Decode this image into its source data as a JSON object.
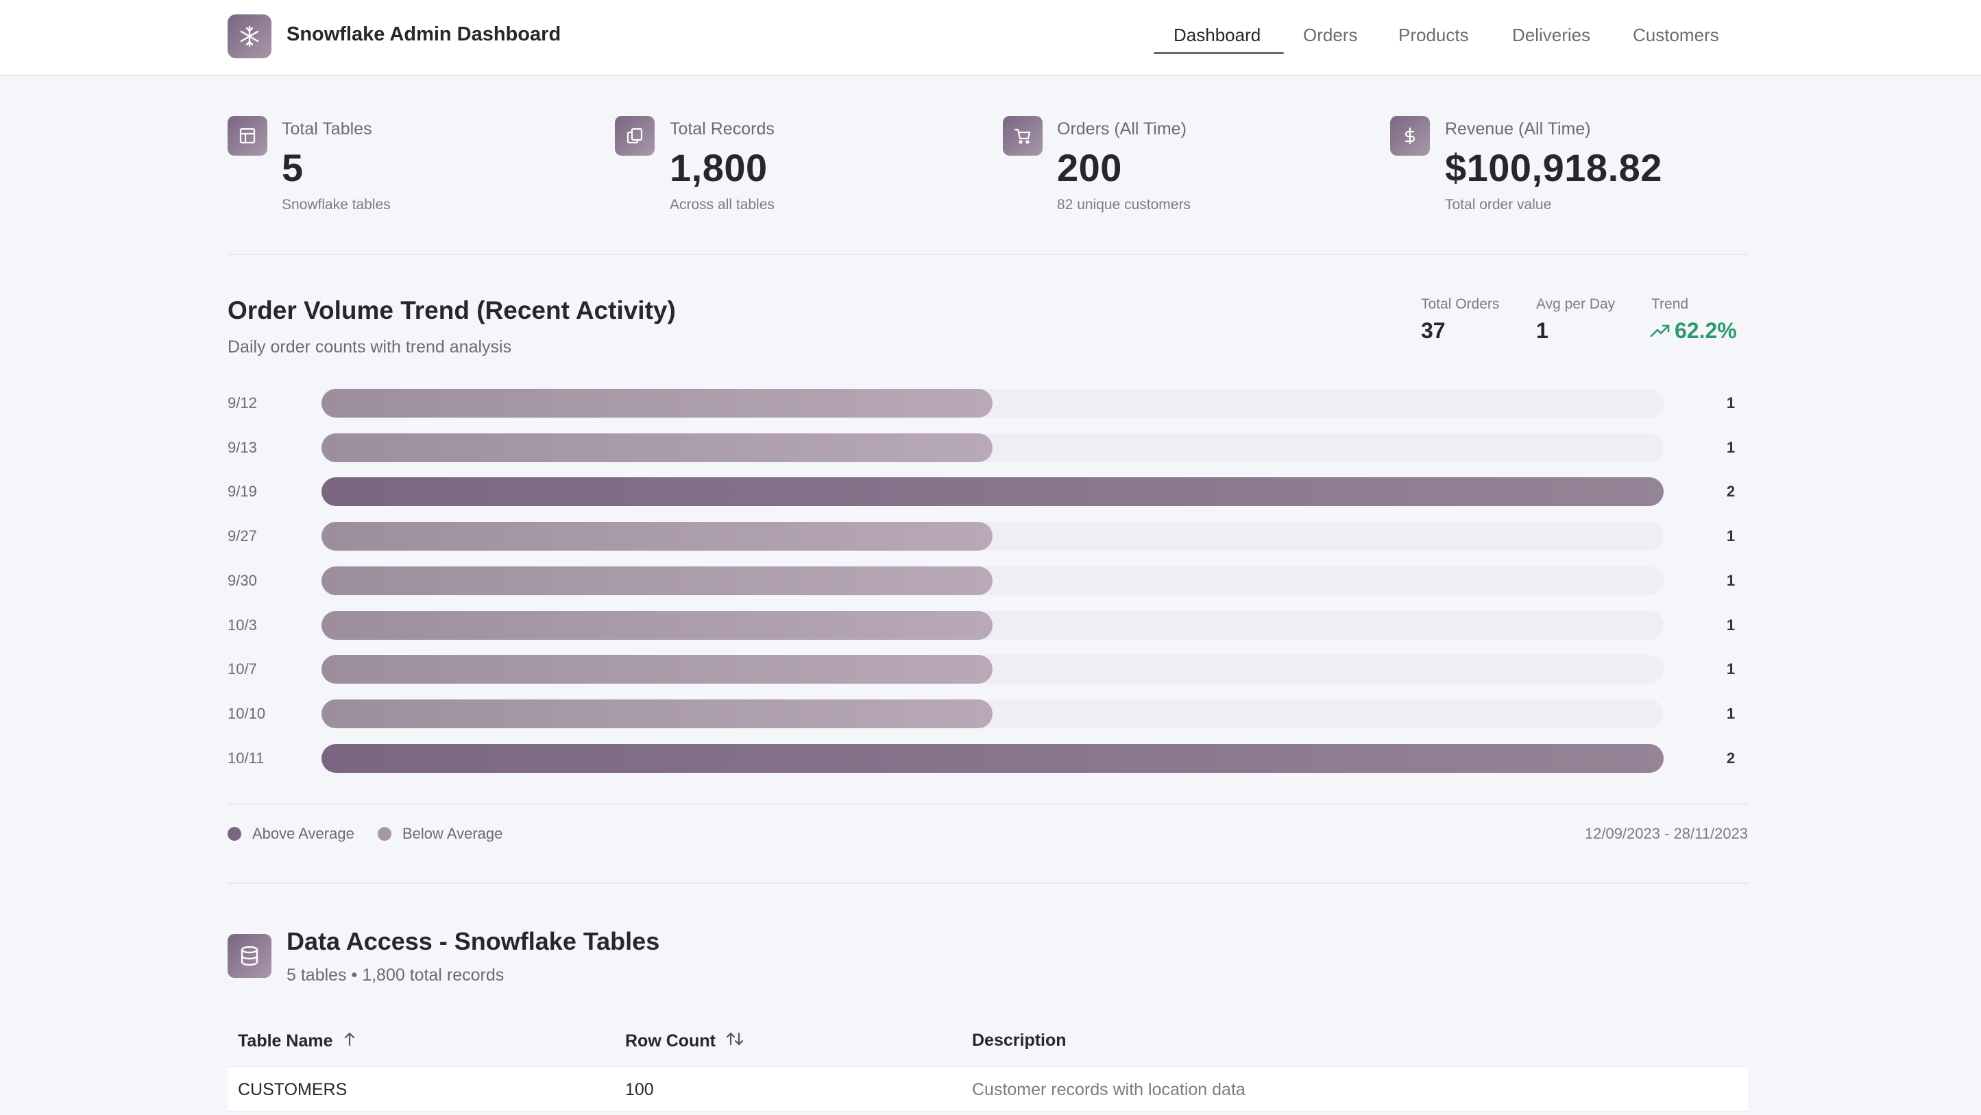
{
  "app": {
    "title": "Snowflake Admin Dashboard",
    "logo_icon": "snowflake-icon"
  },
  "nav": {
    "items": [
      {
        "label": "Dashboard",
        "active": true
      },
      {
        "label": "Orders",
        "active": false
      },
      {
        "label": "Products",
        "active": false
      },
      {
        "label": "Deliveries",
        "active": false
      },
      {
        "label": "Customers",
        "active": false
      }
    ]
  },
  "stats": [
    {
      "label": "Total Tables",
      "value": "5",
      "sub": "Snowflake tables",
      "icon": "table-icon"
    },
    {
      "label": "Total Records",
      "value": "1,800",
      "sub": "Across all tables",
      "icon": "copy-icon"
    },
    {
      "label": "Orders (All Time)",
      "value": "200",
      "sub": "82 unique customers",
      "icon": "cart-icon"
    },
    {
      "label": "Revenue (All Time)",
      "value": "$100,918.82",
      "sub": "Total order value",
      "icon": "dollar-icon"
    }
  ],
  "trend": {
    "title": "Order Volume Trend (Recent Activity)",
    "subtitle": "Daily order counts with trend analysis",
    "metrics": {
      "total_orders_label": "Total Orders",
      "total_orders": "37",
      "avg_label": "Avg per Day",
      "avg": "1",
      "trend_label": "Trend",
      "trend": "62.2%"
    },
    "legend": {
      "above": "Above Average",
      "below": "Below Average"
    },
    "date_range": "12/09/2023 - 28/11/2023",
    "colors": {
      "above": "#7a6681",
      "below": "#a597a5",
      "positive": "#2c9a6e"
    }
  },
  "chart_data": {
    "type": "bar",
    "orientation": "horizontal",
    "categories": [
      "9/12",
      "9/13",
      "9/19",
      "9/27",
      "9/30",
      "10/3",
      "10/7",
      "10/10",
      "10/11"
    ],
    "values": [
      1,
      1,
      2,
      1,
      1,
      1,
      1,
      1,
      2
    ],
    "xlim": [
      0,
      2
    ],
    "title": "",
    "xlabel": "",
    "ylabel": "",
    "grid": false
  },
  "data_access": {
    "title": "Data Access - Snowflake Tables",
    "subtitle": "5 tables • 1,800 total records",
    "icon": "database-icon",
    "columns": [
      "Table Name",
      "Row Count",
      "Description"
    ],
    "rows": [
      {
        "name": "CUSTOMERS",
        "count": "100",
        "description": "Customer records with location data"
      }
    ]
  }
}
